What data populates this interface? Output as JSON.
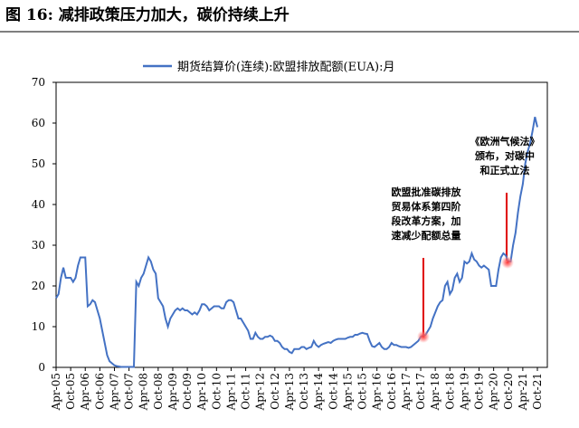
{
  "chart_data": {
    "type": "line",
    "title": "图 16:  减排政策压力加大，碳价持续上升",
    "categories": [
      "Apr-05",
      null,
      null,
      null,
      null,
      null,
      "Oct-05",
      null,
      null,
      null,
      null,
      null,
      "Apr-06",
      null,
      null,
      null,
      null,
      null,
      "Oct-06",
      null,
      null,
      null,
      null,
      null,
      "Apr-07",
      null,
      null,
      null,
      null,
      null,
      "Oct-07",
      null,
      null,
      null,
      null,
      null,
      "Apr-08",
      null,
      null,
      null,
      null,
      null,
      "Oct-08",
      null,
      null,
      null,
      null,
      null,
      "Apr-09",
      null,
      null,
      null,
      null,
      null,
      "Oct-09",
      null,
      null,
      null,
      null,
      null,
      "Apr-10",
      null,
      null,
      null,
      null,
      null,
      "Oct-10",
      null,
      null,
      null,
      null,
      null,
      "Apr-11",
      null,
      null,
      null,
      null,
      null,
      "Oct-11",
      null,
      null,
      null,
      null,
      null,
      "Apr-12",
      null,
      null,
      null,
      null,
      null,
      "Oct-12",
      null,
      null,
      null,
      null,
      null,
      "Apr-13",
      null,
      null,
      null,
      null,
      null,
      "Oct-13",
      null,
      null,
      null,
      null,
      null,
      "Apr-14",
      null,
      null,
      null,
      null,
      null,
      "Oct-14",
      null,
      null,
      null,
      null,
      null,
      "Apr-15",
      null,
      null,
      null,
      null,
      null,
      "Oct-15",
      null,
      null,
      null,
      null,
      null,
      "Apr-16",
      null,
      null,
      null,
      null,
      null,
      "Oct-16",
      null,
      null,
      null,
      null,
      null,
      "Apr-17",
      null,
      null,
      null,
      null,
      null,
      "Oct-17",
      null,
      null,
      null,
      null,
      null,
      "Apr-18",
      null,
      null,
      null,
      null,
      null,
      "Oct-18",
      null,
      null,
      null,
      null,
      null,
      "Apr-19",
      null,
      null,
      null,
      null,
      null,
      "Oct-19",
      null,
      null,
      null,
      null,
      null,
      "Apr-20",
      null,
      null,
      null,
      null,
      null,
      "Oct-20",
      null,
      null,
      null,
      null,
      null,
      "Apr-21",
      null,
      null,
      null,
      null,
      null,
      "Oct-21"
    ],
    "series": [
      {
        "name": "期货结算价(连续):欧盟排放配额(EUA):月",
        "color": "#4472c4",
        "values": [
          17,
          18,
          22,
          24.5,
          22,
          22,
          22,
          21,
          22,
          25,
          27,
          27,
          27,
          15,
          15.5,
          16.5,
          16,
          14,
          12,
          9,
          6,
          3,
          1.5,
          1,
          0.5,
          0.3,
          0.2,
          0.1,
          0.1,
          0.1,
          0.1,
          0.1,
          0.1,
          21,
          20,
          22,
          23,
          25,
          27,
          26,
          24,
          23,
          17,
          16,
          15,
          12,
          10,
          12,
          13,
          14,
          14.5,
          14,
          14.5,
          14,
          14,
          13.5,
          13,
          13.5,
          13,
          14,
          15.5,
          15.5,
          15,
          14,
          14.5,
          15,
          15,
          15,
          14.5,
          14.5,
          16,
          16.5,
          16.5,
          16,
          14,
          12,
          12,
          11,
          10,
          9,
          7,
          7,
          8.5,
          7.5,
          7,
          7,
          7.5,
          7.5,
          7.8,
          7.5,
          6.5,
          6.5,
          6,
          5,
          4.5,
          4.5,
          3.8,
          3.5,
          4.5,
          4.5,
          4.5,
          5,
          5,
          4.5,
          4.8,
          5,
          6.5,
          5.5,
          5,
          5.5,
          5.8,
          6,
          6.2,
          6,
          6.5,
          6.8,
          7,
          7,
          7,
          7,
          7.3,
          7.5,
          7.5,
          8,
          8,
          8.3,
          8.5,
          8.3,
          8.2,
          6.5,
          5.2,
          5,
          5.5,
          6,
          5,
          4.5,
          4.5,
          5,
          6,
          5.5,
          5.5,
          5.2,
          5,
          5,
          5,
          4.8,
          5,
          5.5,
          6,
          6.5,
          7.5,
          7.8,
          8,
          9,
          10,
          12,
          13.5,
          15,
          16,
          16.5,
          20,
          21,
          18,
          19,
          22,
          23,
          21,
          22,
          26,
          25.5,
          26,
          28,
          26.5,
          26,
          25,
          24.5,
          25,
          24.5,
          24,
          20,
          20,
          20,
          24,
          27,
          28,
          27.5,
          26,
          26,
          30,
          33,
          38,
          42,
          45,
          50,
          53,
          55,
          58,
          61.5,
          59
        ]
      }
    ],
    "ylim": [
      0,
      70
    ],
    "yticks": [
      0,
      10,
      20,
      30,
      40,
      50,
      60,
      70
    ],
    "annotations": [
      [
        "欧盟批准碳排放",
        "贸易体系第四阶",
        "段改革方案，加",
        "速减少配额总量"
      ],
      [
        "《欧洲气候法》",
        "颁布，对碳中",
        "和正式立法"
      ]
    ]
  }
}
